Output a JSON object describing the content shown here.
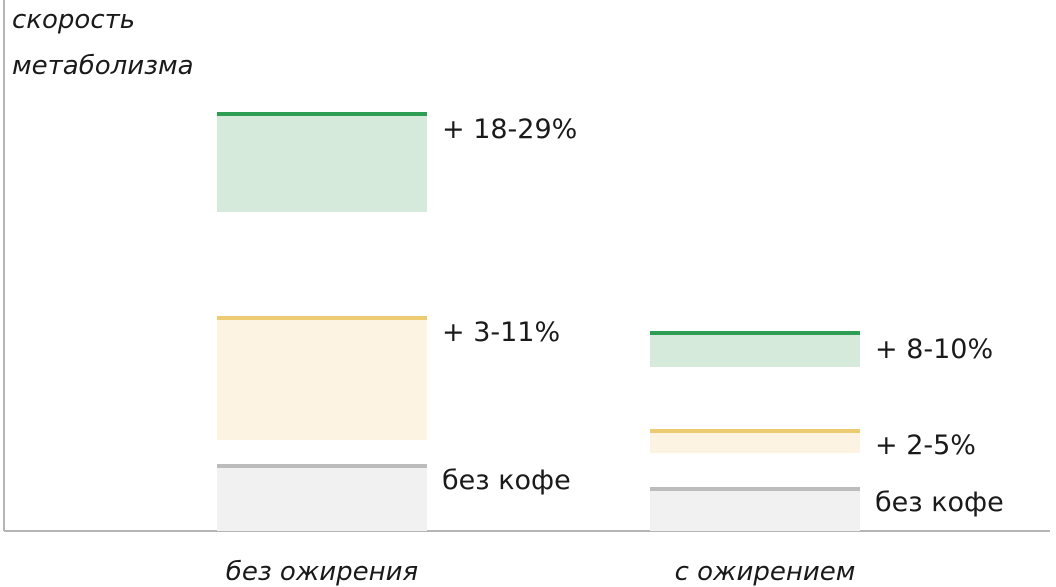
{
  "chart_data": {
    "type": "bar",
    "ylabel_lines": [
      "скорость",
      "метаболизма"
    ],
    "categories": [
      "без ожирения",
      "с ожирением"
    ],
    "groups": [
      {
        "category": "без ожирения",
        "bands": [
          {
            "label": "без кофе",
            "kind": "baseline",
            "top": 0.0
          },
          {
            "label": "+ 3-11%",
            "kind": "increase",
            "range_pct": [
              3,
              11
            ]
          },
          {
            "label": "+ 18-29%",
            "kind": "increase",
            "range_pct": [
              18,
              29
            ]
          }
        ]
      },
      {
        "category": "с ожирением",
        "bands": [
          {
            "label": "без кофе",
            "kind": "baseline",
            "top": 0.0
          },
          {
            "label": "+ 2-5%",
            "kind": "increase",
            "range_pct": [
              2,
              5
            ]
          },
          {
            "label": "+ 8-10%",
            "kind": "increase",
            "range_pct": [
              8,
              10
            ]
          }
        ]
      }
    ],
    "colors": {
      "baseline_fill": "#f1f1f1",
      "baseline_line": "#bcbcbc",
      "low_fill": "#fdf3e2",
      "low_line": "#eccb73",
      "high_fill": "#d5eadb",
      "high_line": "#2e9e55",
      "axis": "#b5b5b5"
    }
  }
}
